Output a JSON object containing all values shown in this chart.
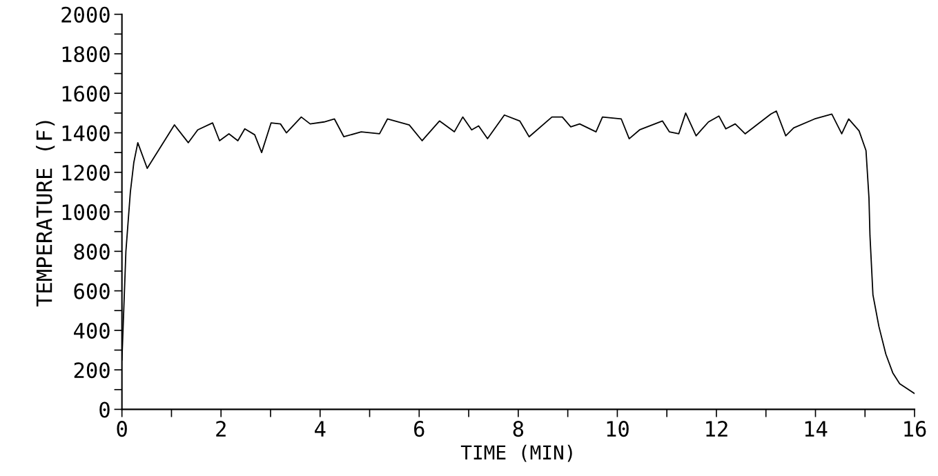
{
  "chart_data": {
    "type": "line",
    "xlabel": "TIME (MIN)",
    "ylabel": "TEMPERATURE (F)",
    "xlim": [
      0,
      16
    ],
    "ylim": [
      0,
      2000
    ],
    "xticks": [
      0,
      {
        "value": 1,
        "label": null
      },
      2,
      {
        "value": 3,
        "label": null
      },
      4,
      {
        "value": 5,
        "label": null
      },
      6,
      {
        "value": 7,
        "label": null
      },
      8,
      {
        "value": 9,
        "label": null
      },
      10,
      {
        "value": 11,
        "label": null
      },
      12,
      {
        "value": 13,
        "label": null
      },
      14,
      {
        "value": 15,
        "label": null
      },
      16
    ],
    "yticks": [
      0,
      {
        "value": 100,
        "label": null
      },
      200,
      {
        "value": 300,
        "label": null
      },
      400,
      {
        "value": 500,
        "label": null
      },
      600,
      {
        "value": 700,
        "label": null
      },
      800,
      {
        "value": 900,
        "label": null
      },
      1000,
      {
        "value": 1100,
        "label": null
      },
      1200,
      {
        "value": 1300,
        "label": null
      },
      1400,
      {
        "value": 1500,
        "label": null
      },
      1600,
      {
        "value": 1700,
        "label": null
      },
      1800,
      {
        "value": 1900,
        "label": null
      },
      2000
    ],
    "grid": false,
    "legend": false,
    "marker": "none",
    "line_style": "solid",
    "series": [
      {
        "color": "#000000",
        "x": [
          0,
          0.08,
          0.17,
          0.24,
          0.32,
          0.51,
          1.06,
          1.34,
          1.53,
          1.83,
          1.97,
          2.16,
          2.34,
          2.48,
          2.68,
          2.82,
          3.01,
          3.2,
          3.32,
          3.62,
          3.8,
          4.08,
          4.29,
          4.48,
          4.83,
          5.2,
          5.36,
          5.8,
          6.06,
          6.41,
          6.71,
          6.88,
          7.06,
          7.2,
          7.38,
          7.72,
          8.03,
          8.22,
          8.68,
          8.89,
          9.06,
          9.24,
          9.57,
          9.7,
          10.08,
          10.24,
          10.45,
          10.91,
          11.05,
          11.24,
          11.38,
          11.59,
          11.84,
          12.05,
          12.19,
          12.38,
          12.58,
          13.1,
          13.21,
          13.4,
          13.56,
          13.98,
          14.33,
          14.53,
          14.67,
          14.88,
          15.02,
          15.08,
          15.1,
          15.16,
          15.28,
          15.42,
          15.56,
          15.7,
          16
        ],
        "values": [
          250,
          800,
          1100,
          1250,
          1350,
          1220,
          1440,
          1350,
          1415,
          1450,
          1360,
          1395,
          1360,
          1420,
          1390,
          1300,
          1450,
          1445,
          1400,
          1480,
          1445,
          1455,
          1470,
          1380,
          1405,
          1395,
          1470,
          1440,
          1360,
          1460,
          1405,
          1480,
          1415,
          1435,
          1370,
          1490,
          1460,
          1380,
          1480,
          1480,
          1430,
          1445,
          1405,
          1480,
          1470,
          1370,
          1415,
          1460,
          1405,
          1395,
          1500,
          1385,
          1455,
          1485,
          1420,
          1445,
          1395,
          1495,
          1510,
          1385,
          1425,
          1470,
          1495,
          1395,
          1470,
          1410,
          1310,
          1070,
          880,
          580,
          420,
          280,
          185,
          130,
          80
        ]
      }
    ]
  }
}
